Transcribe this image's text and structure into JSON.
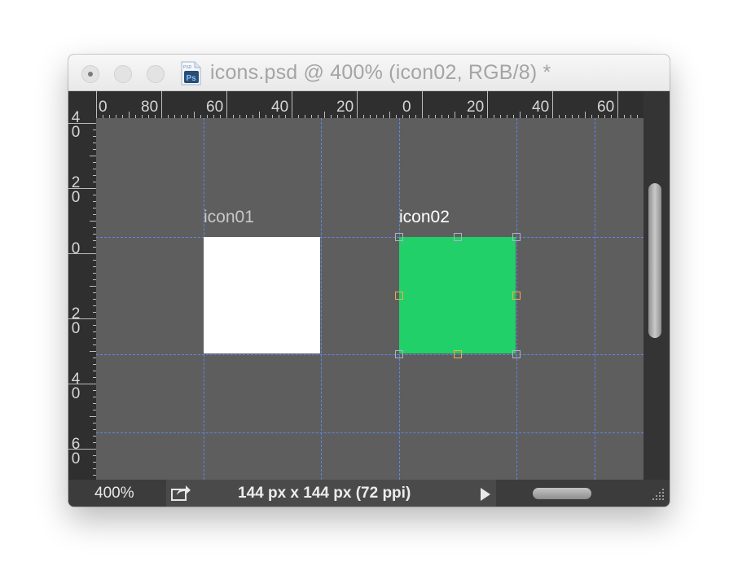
{
  "window": {
    "title": "icons.psd @ 400% (icon02, RGB/8) *",
    "doc_icon_label": "PSD",
    "doc_icon_glyph": "Ps"
  },
  "ruler": {
    "top_labels": [
      "0",
      "80",
      "60",
      "40",
      "20",
      "0",
      "20",
      "40",
      "60"
    ],
    "left_labels": [
      [
        "4",
        "0"
      ],
      [
        "2",
        "0"
      ],
      [
        "0"
      ],
      [
        "2",
        "0"
      ],
      [
        "4",
        "0"
      ],
      [
        "6",
        "0"
      ]
    ]
  },
  "canvas": {
    "artboards": [
      {
        "name": "icon01",
        "fill": "#ffffff",
        "label_color": "#c8c8c8",
        "selected": false
      },
      {
        "name": "icon02",
        "fill": "#22d06a",
        "label_color": "#ffffff",
        "selected": true
      }
    ],
    "guide_color": "#5f8dff"
  },
  "status": {
    "zoom": "400%",
    "doc_info": "144 px x 144 px (72 ppi)"
  }
}
